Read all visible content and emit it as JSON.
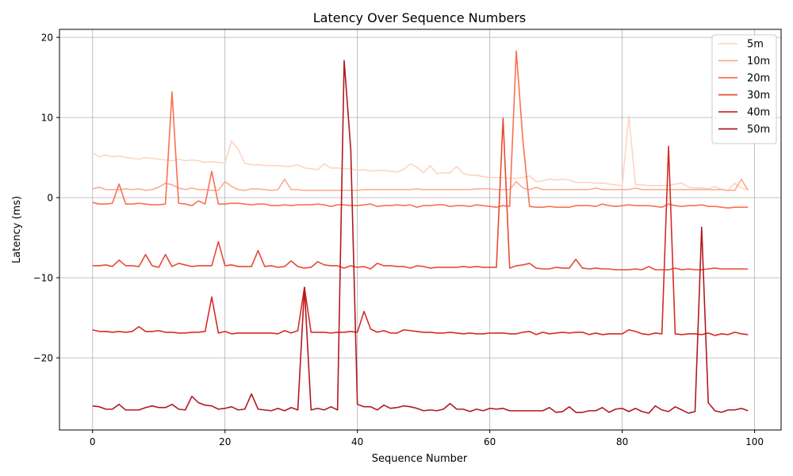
{
  "chart_data": {
    "type": "line",
    "title": "Latency Over Sequence Numbers",
    "xlabel": "Sequence Number",
    "ylabel": "Latency (ms)",
    "xlim": [
      -5,
      104
    ],
    "ylim": [
      -29,
      21
    ],
    "xticks": [
      0,
      20,
      40,
      60,
      80,
      100
    ],
    "yticks": [
      -20,
      -10,
      0,
      10,
      20
    ],
    "grid": true,
    "legend_position": "top-right",
    "series": [
      {
        "name": "5m",
        "color": "#fdd5c1",
        "values": [
          5.6,
          5.1,
          5.3,
          5.1,
          5.2,
          5.0,
          4.9,
          4.8,
          5.0,
          4.9,
          4.8,
          4.7,
          4.6,
          4.8,
          4.6,
          4.7,
          4.6,
          4.4,
          4.5,
          4.4,
          4.3,
          7.1,
          6.0,
          4.3,
          4.1,
          4.1,
          4.0,
          4.0,
          4.0,
          3.9,
          3.9,
          4.1,
          3.7,
          3.6,
          3.5,
          4.2,
          3.7,
          3.7,
          3.6,
          3.6,
          3.4,
          3.5,
          3.3,
          3.4,
          3.4,
          3.3,
          3.2,
          3.5,
          4.2,
          3.8,
          3.1,
          4.0,
          3.0,
          3.1,
          3.1,
          3.9,
          3.0,
          2.8,
          2.8,
          2.6,
          2.5,
          2.5,
          2.5,
          2.4,
          2.4,
          2.5,
          2.7,
          2.0,
          2.1,
          2.3,
          2.2,
          2.3,
          2.2,
          1.9,
          1.9,
          1.9,
          1.8,
          1.8,
          1.7,
          1.6,
          1.5,
          10.2,
          1.6,
          1.6,
          1.5,
          1.5,
          1.5,
          1.5,
          1.7,
          1.8,
          1.3,
          1.2,
          1.2,
          1.1,
          1.4,
          1.0,
          0.9,
          1.8,
          1.2,
          1.0
        ]
      },
      {
        "name": "10m",
        "color": "#fcaa8d",
        "values": [
          1.1,
          1.3,
          1.0,
          1.0,
          1.0,
          1.1,
          1.0,
          1.1,
          0.9,
          1.0,
          1.3,
          1.8,
          1.6,
          1.2,
          1.0,
          1.2,
          1.0,
          1.0,
          0.9,
          0.9,
          2.0,
          1.4,
          1.0,
          0.9,
          1.1,
          1.1,
          1.0,
          0.9,
          1.0,
          2.3,
          1.0,
          1.0,
          0.9,
          0.9,
          0.9,
          0.9,
          0.9,
          0.9,
          0.9,
          0.9,
          0.9,
          1.0,
          1.0,
          1.0,
          1.0,
          1.0,
          1.0,
          1.0,
          1.0,
          1.1,
          1.0,
          1.0,
          1.0,
          1.0,
          1.0,
          1.0,
          1.0,
          1.0,
          1.1,
          1.1,
          1.1,
          1.0,
          1.0,
          1.0,
          2.0,
          1.2,
          1.0,
          1.3,
          1.0,
          1.0,
          1.0,
          1.0,
          1.0,
          1.0,
          1.0,
          1.0,
          1.2,
          1.0,
          1.0,
          1.0,
          1.0,
          1.0,
          1.2,
          1.0,
          1.0,
          1.0,
          1.0,
          1.0,
          1.0,
          1.0,
          1.0,
          1.0,
          1.0,
          1.0,
          1.0,
          1.0,
          0.9,
          0.9,
          2.3,
          0.9
        ]
      },
      {
        "name": "20m",
        "color": "#fb7050",
        "values": [
          -0.6,
          -0.8,
          -0.8,
          -0.7,
          1.7,
          -0.8,
          -0.8,
          -0.7,
          -0.8,
          -0.9,
          -0.9,
          -0.8,
          13.2,
          -0.7,
          -0.8,
          -1.0,
          -0.4,
          -0.8,
          3.3,
          -0.8,
          -0.8,
          -0.7,
          -0.7,
          -0.8,
          -0.9,
          -0.8,
          -0.8,
          -1.0,
          -1.0,
          -0.9,
          -1.0,
          -0.9,
          -0.9,
          -0.9,
          -0.8,
          -0.9,
          -1.1,
          -0.9,
          -0.9,
          -1.0,
          -1.0,
          -0.9,
          -0.8,
          -1.1,
          -1.0,
          -1.0,
          -0.9,
          -1.0,
          -0.9,
          -1.2,
          -1.0,
          -1.0,
          -0.9,
          -0.9,
          -1.1,
          -1.0,
          -1.0,
          -1.1,
          -0.9,
          -1.0,
          -1.1,
          -1.2,
          -1.0,
          -1.1,
          18.3,
          7.1,
          -1.1,
          -1.2,
          -1.2,
          -1.1,
          -1.2,
          -1.2,
          -1.2,
          -1.0,
          -1.0,
          -1.0,
          -1.1,
          -0.8,
          -1.0,
          -1.1,
          -1.0,
          -0.9,
          -1.0,
          -1.0,
          -1.0,
          -1.1,
          -1.2,
          -0.8,
          -1.0,
          -1.1,
          -1.0,
          -1.0,
          -0.9,
          -1.1,
          -1.1,
          -1.2,
          -1.3,
          -1.2,
          -1.2,
          -1.2
        ]
      },
      {
        "name": "30m",
        "color": "#e64b35",
        "values": [
          -8.5,
          -8.5,
          -8.4,
          -8.6,
          -7.8,
          -8.5,
          -8.5,
          -8.6,
          -7.1,
          -8.5,
          -8.7,
          -7.1,
          -8.6,
          -8.2,
          -8.4,
          -8.6,
          -8.5,
          -8.5,
          -8.5,
          -5.5,
          -8.5,
          -8.4,
          -8.6,
          -8.6,
          -8.6,
          -6.6,
          -8.6,
          -8.5,
          -8.7,
          -8.6,
          -7.9,
          -8.6,
          -8.8,
          -8.7,
          -8.0,
          -8.4,
          -8.5,
          -8.5,
          -8.8,
          -8.5,
          -8.7,
          -8.6,
          -8.9,
          -8.2,
          -8.5,
          -8.5,
          -8.6,
          -8.6,
          -8.8,
          -8.5,
          -8.6,
          -8.8,
          -8.7,
          -8.7,
          -8.7,
          -8.7,
          -8.6,
          -8.7,
          -8.6,
          -8.7,
          -8.7,
          -8.7,
          9.9,
          -8.8,
          -8.5,
          -8.4,
          -8.2,
          -8.8,
          -8.9,
          -8.9,
          -8.7,
          -8.8,
          -8.8,
          -7.7,
          -8.8,
          -8.9,
          -8.8,
          -8.9,
          -8.9,
          -9.0,
          -9.0,
          -9.0,
          -8.9,
          -9.0,
          -8.6,
          -9.0,
          -9.0,
          -9.0,
          -8.8,
          -9.0,
          -8.9,
          -9.0,
          -9.0,
          -8.9,
          -8.8,
          -8.9,
          -8.9,
          -8.9,
          -8.9,
          -8.9
        ]
      },
      {
        "name": "40m",
        "color": "#d62b24",
        "values": [
          -16.5,
          -16.7,
          -16.7,
          -16.8,
          -16.7,
          -16.8,
          -16.7,
          -16.1,
          -16.7,
          -16.7,
          -16.6,
          -16.8,
          -16.8,
          -16.9,
          -16.9,
          -16.8,
          -16.8,
          -16.7,
          -12.4,
          -16.9,
          -16.7,
          -17.0,
          -16.9,
          -16.9,
          -16.9,
          -16.9,
          -16.9,
          -16.9,
          -17.0,
          -16.6,
          -16.9,
          -16.6,
          -11.2,
          -16.8,
          -16.8,
          -16.8,
          -16.9,
          -16.8,
          -16.8,
          -16.7,
          -16.8,
          -14.2,
          -16.4,
          -16.8,
          -16.6,
          -16.9,
          -16.9,
          -16.5,
          -16.6,
          -16.7,
          -16.8,
          -16.8,
          -16.9,
          -16.9,
          -16.8,
          -16.9,
          -17.0,
          -16.9,
          -17.0,
          -17.0,
          -16.9,
          -16.9,
          -16.9,
          -17.0,
          -17.0,
          -16.8,
          -16.7,
          -17.1,
          -16.8,
          -17.0,
          -16.9,
          -16.8,
          -16.9,
          -16.8,
          -16.8,
          -17.1,
          -16.9,
          -17.1,
          -17.0,
          -17.0,
          -17.0,
          -16.5,
          -16.7,
          -17.0,
          -17.1,
          -16.9,
          -17.0,
          6.4,
          -17.0,
          -17.1,
          -17.0,
          -17.0,
          -17.1,
          -16.9,
          -17.2,
          -17.0,
          -17.1,
          -16.8,
          -17.0,
          -17.1
        ]
      },
      {
        "name": "50m",
        "color": "#b01a1f",
        "values": [
          -26.0,
          -26.1,
          -26.4,
          -26.4,
          -25.8,
          -26.5,
          -26.5,
          -26.5,
          -26.2,
          -26.0,
          -26.2,
          -26.2,
          -25.8,
          -26.4,
          -26.5,
          -24.8,
          -25.6,
          -25.9,
          -26.0,
          -26.4,
          -26.3,
          -26.1,
          -26.5,
          -26.4,
          -24.5,
          -26.4,
          -26.5,
          -26.6,
          -26.3,
          -26.6,
          -26.2,
          -26.5,
          -11.2,
          -26.5,
          -26.3,
          -26.5,
          -26.1,
          -26.5,
          17.1,
          6.0,
          -25.8,
          -26.1,
          -26.1,
          -26.5,
          -25.9,
          -26.3,
          -26.2,
          -26.0,
          -26.1,
          -26.3,
          -26.6,
          -26.5,
          -26.6,
          -26.4,
          -25.7,
          -26.4,
          -26.4,
          -26.7,
          -26.4,
          -26.6,
          -26.3,
          -26.4,
          -26.3,
          -26.6,
          -26.6,
          -26.6,
          -26.6,
          -26.6,
          -26.6,
          -26.2,
          -26.8,
          -26.7,
          -26.1,
          -26.8,
          -26.8,
          -26.6,
          -26.6,
          -26.2,
          -26.8,
          -26.4,
          -26.3,
          -26.7,
          -26.3,
          -26.7,
          -26.9,
          -26.0,
          -26.5,
          -26.7,
          -26.1,
          -26.5,
          -26.9,
          -26.7,
          -3.7,
          -25.6,
          -26.6,
          -26.8,
          -26.5,
          -26.5,
          -26.3,
          -26.6
        ]
      }
    ]
  }
}
